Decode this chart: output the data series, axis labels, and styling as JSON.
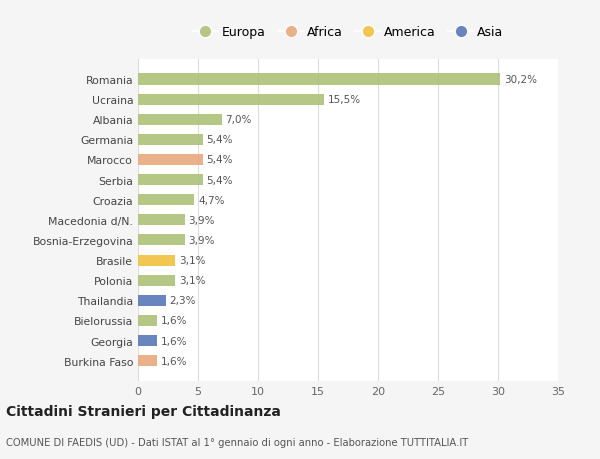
{
  "countries": [
    "Romania",
    "Ucraina",
    "Albania",
    "Germania",
    "Marocco",
    "Serbia",
    "Croazia",
    "Macedonia d/N.",
    "Bosnia-Erzegovina",
    "Brasile",
    "Polonia",
    "Thailandia",
    "Bielorussia",
    "Georgia",
    "Burkina Faso"
  ],
  "values": [
    30.2,
    15.5,
    7.0,
    5.4,
    5.4,
    5.4,
    4.7,
    3.9,
    3.9,
    3.1,
    3.1,
    2.3,
    1.6,
    1.6,
    1.6
  ],
  "labels": [
    "30,2%",
    "15,5%",
    "7,0%",
    "5,4%",
    "5,4%",
    "5,4%",
    "4,7%",
    "3,9%",
    "3,9%",
    "3,1%",
    "3,1%",
    "2,3%",
    "1,6%",
    "1,6%",
    "1,6%"
  ],
  "continents": [
    "Europa",
    "Europa",
    "Europa",
    "Europa",
    "Africa",
    "Europa",
    "Europa",
    "Europa",
    "Europa",
    "America",
    "Europa",
    "Asia",
    "Europa",
    "Asia",
    "Africa"
  ],
  "continent_colors": {
    "Europa": "#adc178",
    "Africa": "#e8a87c",
    "America": "#f0c040",
    "Asia": "#5878b8"
  },
  "legend_order": [
    "Europa",
    "Africa",
    "America",
    "Asia"
  ],
  "title": "Cittadini Stranieri per Cittadinanza",
  "subtitle": "COMUNE DI FAEDIS (UD) - Dati ISTAT al 1° gennaio di ogni anno - Elaborazione TUTTITALIA.IT",
  "xlim": [
    0,
    35
  ],
  "xticks": [
    0,
    5,
    10,
    15,
    20,
    25,
    30,
    35
  ],
  "bg_color": "#f5f5f5",
  "plot_bg_color": "#ffffff",
  "grid_color": "#dddddd"
}
